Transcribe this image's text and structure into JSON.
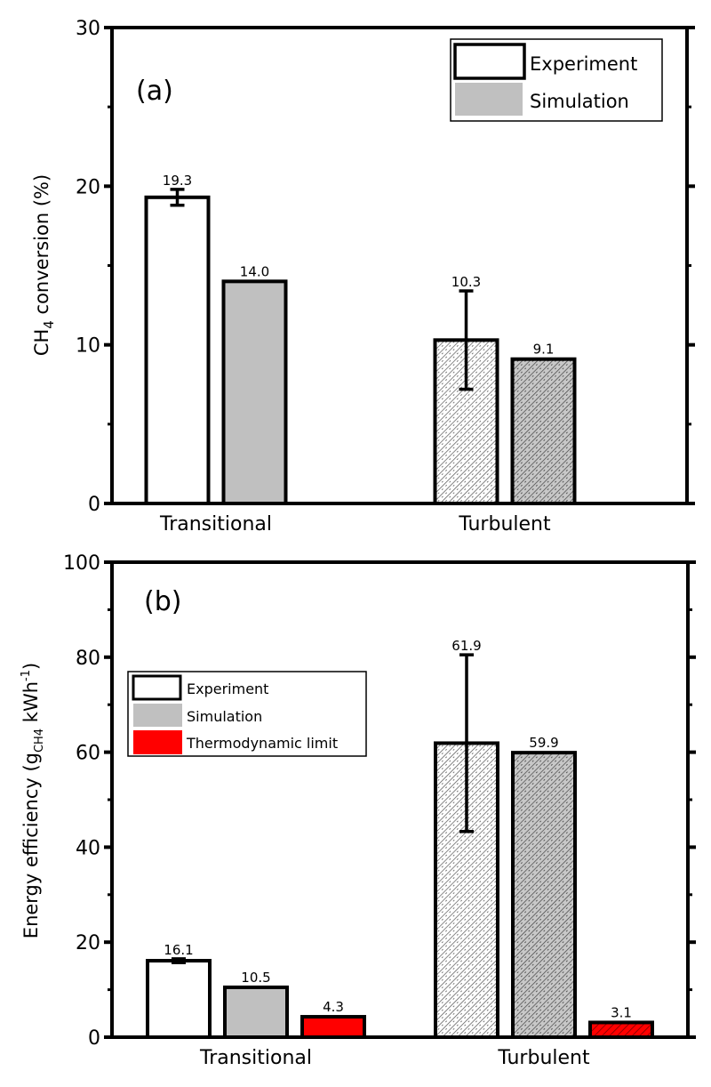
{
  "chart_data": [
    {
      "type": "bar",
      "panel_label": "(a)",
      "ylabel_parts": [
        "CH",
        "4",
        " conversion (%)"
      ],
      "xlabel": "",
      "ylim": [
        0,
        30
      ],
      "yticks": [
        0,
        10,
        20,
        30
      ],
      "tick_labels": [
        "0",
        "10",
        "20",
        "30"
      ],
      "categories": [
        "Transitional",
        "Turbulent"
      ],
      "legend": {
        "placement": "top-right",
        "entries": [
          "Experiment",
          "Simulation"
        ]
      },
      "series": [
        {
          "name": "Experiment",
          "values": [
            19.3,
            10.3
          ],
          "labels": [
            "19.3",
            "10.3"
          ],
          "error": [
            0.5,
            3.1
          ],
          "color": "#ffffff"
        },
        {
          "name": "Simulation",
          "values": [
            14.0,
            9.1
          ],
          "labels": [
            "14.0",
            "9.1"
          ],
          "error": [
            null,
            null
          ],
          "color": "#c0c0c0"
        }
      ],
      "hatched_categories": [
        "Turbulent"
      ]
    },
    {
      "type": "bar",
      "panel_label": "(b)",
      "ylabel_parts": [
        "Energy efficiency (g",
        "CH4",
        " kWh",
        "-1",
        ")"
      ],
      "xlabel": "",
      "ylim": [
        0,
        100
      ],
      "yticks": [
        0,
        20,
        40,
        60,
        80,
        100
      ],
      "tick_labels": [
        "0",
        "20",
        "40",
        "60",
        "80",
        "100"
      ],
      "categories": [
        "Transitional",
        "Turbulent"
      ],
      "legend": {
        "placement": "upper-left",
        "entries": [
          "Experiment",
          "Simulation",
          "Thermodynamic limit"
        ]
      },
      "series": [
        {
          "name": "Experiment",
          "values": [
            16.1,
            61.9
          ],
          "labels": [
            "16.1",
            "61.9"
          ],
          "error": [
            0.4,
            18.6
          ],
          "color": "#ffffff"
        },
        {
          "name": "Simulation",
          "values": [
            10.5,
            59.9
          ],
          "labels": [
            "10.5",
            "59.9"
          ],
          "error": [
            null,
            null
          ],
          "color": "#c0c0c0"
        },
        {
          "name": "Thermodynamic limit",
          "values": [
            4.3,
            3.1
          ],
          "labels": [
            "4.3",
            "3.1"
          ],
          "error": [
            null,
            null
          ],
          "color": "#ff0000"
        }
      ],
      "hatched_categories": [
        "Turbulent"
      ]
    }
  ]
}
